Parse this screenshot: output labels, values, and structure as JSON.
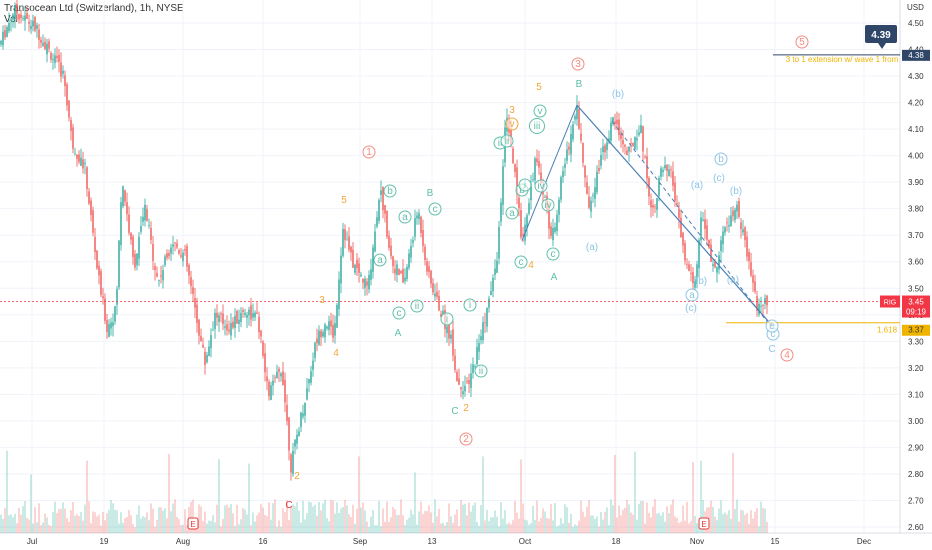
{
  "header": {
    "title": "Transocean Ltd (Switzerland), 1h, NYSE",
    "volume_label": "Vol",
    "currency": "USD"
  },
  "chart_data": {
    "type": "candlestick",
    "symbol": "RIG",
    "interval": "1h",
    "exchange": "NYSE",
    "ylim": [
      2.55,
      4.55
    ],
    "y_ticks": [
      2.6,
      2.7,
      2.8,
      2.9,
      3.0,
      3.1,
      3.2,
      3.3,
      3.4,
      3.5,
      3.6,
      3.7,
      3.8,
      3.9,
      4.0,
      4.1,
      4.2,
      4.3,
      4.4,
      4.5
    ],
    "x_ticks": [
      "Jul",
      "19",
      "Aug",
      "16",
      "Sep",
      "13",
      "Oct",
      "18",
      "Nov",
      "15",
      "Dec"
    ],
    "path": [
      [
        0,
        4.42
      ],
      [
        14,
        4.55
      ],
      [
        36,
        4.48
      ],
      [
        64,
        4.3
      ],
      [
        72,
        4.05
      ],
      [
        85,
        3.95
      ],
      [
        98,
        3.55
      ],
      [
        107,
        3.35
      ],
      [
        116,
        3.42
      ],
      [
        122,
        3.92
      ],
      [
        134,
        3.58
      ],
      [
        145,
        3.8
      ],
      [
        158,
        3.52
      ],
      [
        172,
        3.68
      ],
      [
        185,
        3.62
      ],
      [
        195,
        3.42
      ],
      [
        205,
        3.22
      ],
      [
        215,
        3.4
      ],
      [
        230,
        3.35
      ],
      [
        245,
        3.42
      ],
      [
        258,
        3.38
      ],
      [
        268,
        3.1
      ],
      [
        282,
        3.2
      ],
      [
        291,
        2.83
      ],
      [
        300,
        3.0
      ],
      [
        306,
        3.1
      ],
      [
        316,
        3.3
      ],
      [
        326,
        3.38
      ],
      [
        334,
        3.32
      ],
      [
        343,
        3.73
      ],
      [
        352,
        3.6
      ],
      [
        368,
        3.5
      ],
      [
        380,
        3.88
      ],
      [
        392,
        3.6
      ],
      [
        404,
        3.52
      ],
      [
        418,
        3.8
      ],
      [
        428,
        3.55
      ],
      [
        442,
        3.4
      ],
      [
        452,
        3.3
      ],
      [
        457,
        3.15
      ],
      [
        468,
        3.12
      ],
      [
        478,
        3.28
      ],
      [
        492,
        3.5
      ],
      [
        498,
        3.65
      ],
      [
        506,
        4.15
      ],
      [
        514,
        3.95
      ],
      [
        522,
        3.68
      ],
      [
        535,
        3.98
      ],
      [
        542,
        3.9
      ],
      [
        552,
        3.68
      ],
      [
        562,
        3.92
      ],
      [
        577,
        4.19
      ],
      [
        588,
        3.8
      ],
      [
        600,
        3.98
      ],
      [
        614,
        4.14
      ],
      [
        628,
        4.0
      ],
      [
        640,
        4.12
      ],
      [
        652,
        3.78
      ],
      [
        662,
        3.95
      ],
      [
        672,
        3.92
      ],
      [
        684,
        3.62
      ],
      [
        694,
        3.5
      ],
      [
        702,
        3.78
      ],
      [
        714,
        3.55
      ],
      [
        724,
        3.72
      ],
      [
        738,
        3.8
      ],
      [
        748,
        3.6
      ],
      [
        758,
        3.42
      ],
      [
        768,
        3.45
      ]
    ],
    "last_price": {
      "symbol": "RIG",
      "price": "3.45",
      "countdown": "09:19",
      "color": "#f23645"
    },
    "target_label": {
      "price": "4.39",
      "level": "4.38",
      "color": "#2f4668"
    },
    "fib_label": {
      "ratio": "1.618",
      "level": "3.37",
      "color": "#f0b400"
    },
    "annotations": [
      {
        "text": "3 to 1 extension w/ wave 1 from",
        "color": "#f0b400",
        "circled": false
      },
      {
        "text": "1",
        "color": "#f28b82",
        "circled": true
      },
      {
        "text": "2",
        "color": "#f28b82",
        "circled": true
      },
      {
        "text": "3",
        "color": "#f28b82",
        "circled": true
      },
      {
        "text": "4",
        "color": "#f28b82",
        "circled": true
      },
      {
        "text": "5",
        "color": "#f28b82",
        "circled": true
      },
      {
        "text": "3",
        "color": "#f5a53a",
        "circled": false
      },
      {
        "text": "4",
        "color": "#f5a53a",
        "circled": false
      },
      {
        "text": "5",
        "color": "#f5a53a",
        "circled": false
      },
      {
        "text": "3",
        "color": "#f5a53a",
        "circled": false
      },
      {
        "text": "4",
        "color": "#f5a53a",
        "circled": false
      },
      {
        "text": "5",
        "color": "#f5a53a",
        "circled": false
      },
      {
        "text": "2",
        "color": "#f5a53a",
        "circled": false
      },
      {
        "text": "2",
        "color": "#f5a53a",
        "circled": false
      },
      {
        "text": "C",
        "color": "#e53935",
        "circled": false
      },
      {
        "text": "A",
        "color": "#5fbfa8",
        "circled": false
      },
      {
        "text": "B",
        "color": "#5fbfa8",
        "circled": false
      },
      {
        "text": "C",
        "color": "#5fbfa8",
        "circled": false
      },
      {
        "text": "A",
        "color": "#5fbfa8",
        "circled": false
      },
      {
        "text": "B",
        "color": "#5fbfa8",
        "circled": false
      },
      {
        "text": "C",
        "color": "#8ec5e6",
        "circled": false
      },
      {
        "text": "a",
        "color": "#5fbfa8",
        "circled": true
      },
      {
        "text": "b",
        "color": "#5fbfa8",
        "circled": true
      },
      {
        "text": "c",
        "color": "#5fbfa8",
        "circled": true
      },
      {
        "text": "a",
        "color": "#5fbfa8",
        "circled": true
      },
      {
        "text": "b",
        "color": "#5fbfa8",
        "circled": true
      },
      {
        "text": "c",
        "color": "#5fbfa8",
        "circled": true
      },
      {
        "text": "ii",
        "color": "#5fbfa8",
        "circled": true
      },
      {
        "text": "i",
        "color": "#5fbfa8",
        "circled": true
      },
      {
        "text": "ii",
        "color": "#5fbfa8",
        "circled": true
      },
      {
        "text": "iii",
        "color": "#5fbfa8",
        "circled": true
      },
      {
        "text": "iv",
        "color": "#5fbfa8",
        "circled": true
      },
      {
        "text": "v",
        "color": "#5fbfa8",
        "circled": true
      },
      {
        "text": "i",
        "color": "#5fbfa8",
        "circled": true
      },
      {
        "text": "ii",
        "color": "#5fbfa8",
        "circled": true
      },
      {
        "text": "iv",
        "color": "#5fbfa8",
        "circled": true
      },
      {
        "text": "c",
        "color": "#5fbfa8",
        "circled": true
      },
      {
        "text": "a",
        "color": "#5fbfa8",
        "circled": true
      },
      {
        "text": "c",
        "color": "#5fbfa8",
        "circled": true
      },
      {
        "text": "i",
        "color": "#5fbfa8",
        "circled": true
      },
      {
        "text": "ii",
        "color": "#5fbfa8",
        "circled": true
      },
      {
        "text": "v",
        "color": "#f5a53a",
        "circled": true
      },
      {
        "text": "(b)",
        "color": "#8ec5e6",
        "circled": false
      },
      {
        "text": "(a)",
        "color": "#8ec5e6",
        "circled": false
      },
      {
        "text": "(a)",
        "color": "#8ec5e6",
        "circled": false
      },
      {
        "text": "(c)",
        "color": "#8ec5e6",
        "circled": false
      },
      {
        "text": "(b)",
        "color": "#8ec5e6",
        "circled": false
      },
      {
        "text": "(b)",
        "color": "#8ec5e6",
        "circled": false
      },
      {
        "text": "(c)",
        "color": "#8ec5e6",
        "circled": false
      },
      {
        "text": "(a)",
        "color": "#8ec5e6",
        "circled": false
      },
      {
        "text": "b",
        "color": "#8ec5e6",
        "circled": true
      },
      {
        "text": "a",
        "color": "#8ec5e6",
        "circled": true
      },
      {
        "text": "c",
        "color": "#8ec5e6",
        "circled": true
      },
      {
        "text": "e",
        "color": "#8ec5e6",
        "circled": true
      }
    ]
  },
  "events": [
    "E",
    "E"
  ]
}
